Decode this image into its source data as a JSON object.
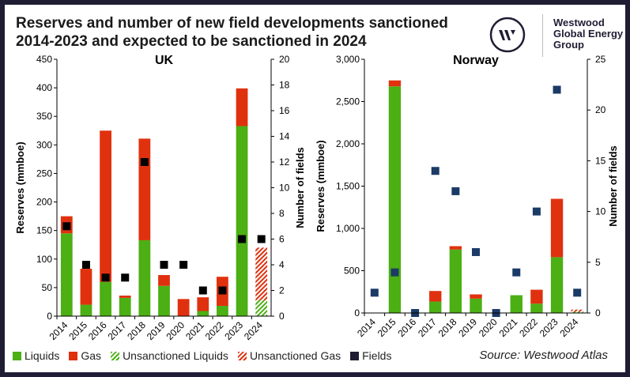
{
  "title": "Reserves and number of new field developments sanctioned 2014-2023 and expected to be sanctioned in 2024",
  "brand": {
    "line1": "Westwood",
    "line2": "Global Energy",
    "line3": "Group",
    "logo_letter": "W"
  },
  "source": "Source: Westwood Atlas",
  "colors": {
    "liquids": "#4caf14",
    "gas": "#e0310f",
    "fields_uk": "#000000",
    "fields_norway": "#1b3a66",
    "frame": "#1f1d33"
  },
  "legend": [
    {
      "label": "Liquids",
      "key": "liquids"
    },
    {
      "label": "Gas",
      "key": "gas"
    },
    {
      "label": "Unsanctioned Liquids",
      "key": "unsanctioned_liquids"
    },
    {
      "label": "Unsanctioned Gas",
      "key": "unsanctioned_gas"
    },
    {
      "label": "Fields",
      "key": "fields"
    }
  ],
  "chart_data": [
    {
      "type": "bar",
      "title": "UK",
      "ylabel": "Reserves (mmboe)",
      "y2label": "Number of fields",
      "ylim": [
        0,
        450
      ],
      "yticks": [
        "0",
        "50",
        "100",
        "150",
        "200",
        "250",
        "300",
        "350",
        "400",
        "450"
      ],
      "y2lim": [
        0,
        20
      ],
      "y2ticks": [
        "0",
        "2",
        "4",
        "6",
        "8",
        "10",
        "12",
        "14",
        "16",
        "18",
        "20"
      ],
      "categories": [
        "2014",
        "2015",
        "2016",
        "2017",
        "2018",
        "2019",
        "2020",
        "2021",
        "2022",
        "2023",
        "2024"
      ],
      "stacked": true,
      "grid": false,
      "series": [
        {
          "name": "Liquids",
          "values": [
            145,
            20,
            60,
            32,
            133,
            53,
            0,
            9,
            18,
            333,
            0
          ]
        },
        {
          "name": "Gas",
          "values": [
            30,
            63,
            265,
            4,
            178,
            19,
            30,
            24,
            51,
            66,
            0
          ]
        },
        {
          "name": "Unsanctioned Liquids",
          "values": [
            0,
            0,
            0,
            0,
            0,
            0,
            0,
            0,
            0,
            0,
            28
          ]
        },
        {
          "name": "Unsanctioned Gas",
          "values": [
            0,
            0,
            0,
            0,
            0,
            0,
            0,
            0,
            0,
            0,
            92
          ]
        },
        {
          "name": "Fields",
          "axis": "right",
          "values": [
            7,
            4,
            3,
            3,
            12,
            4,
            4,
            2,
            2,
            6,
            6
          ]
        }
      ]
    },
    {
      "type": "bar",
      "title": "Norway",
      "ylabel": "Reserves (mmboe)",
      "y2label": "Number of fields",
      "ylim": [
        0,
        3000
      ],
      "yticks": [
        "0",
        "500",
        "1,000",
        "1,500",
        "2,000",
        "2,500",
        "3,000"
      ],
      "y2lim": [
        0,
        25
      ],
      "y2ticks": [
        "0",
        "5",
        "10",
        "15",
        "20",
        "25"
      ],
      "categories": [
        "2014",
        "2015",
        "2016",
        "2017",
        "2018",
        "2019",
        "2020",
        "2021",
        "2022",
        "2023",
        "2024"
      ],
      "stacked": true,
      "grid": false,
      "series": [
        {
          "name": "Liquids",
          "values": [
            0,
            2680,
            0,
            135,
            750,
            170,
            0,
            210,
            110,
            660,
            0
          ]
        },
        {
          "name": "Gas",
          "values": [
            0,
            70,
            0,
            125,
            40,
            50,
            0,
            0,
            165,
            690,
            0
          ]
        },
        {
          "name": "Unsanctioned Liquids",
          "values": [
            0,
            0,
            0,
            0,
            0,
            0,
            0,
            0,
            0,
            0,
            15
          ]
        },
        {
          "name": "Unsanctioned Gas",
          "values": [
            0,
            0,
            0,
            0,
            0,
            0,
            0,
            0,
            0,
            0,
            25
          ]
        },
        {
          "name": "Fields",
          "axis": "right",
          "values": [
            2,
            4,
            0,
            14,
            12,
            6,
            0,
            4,
            10,
            22,
            2
          ]
        }
      ]
    }
  ]
}
